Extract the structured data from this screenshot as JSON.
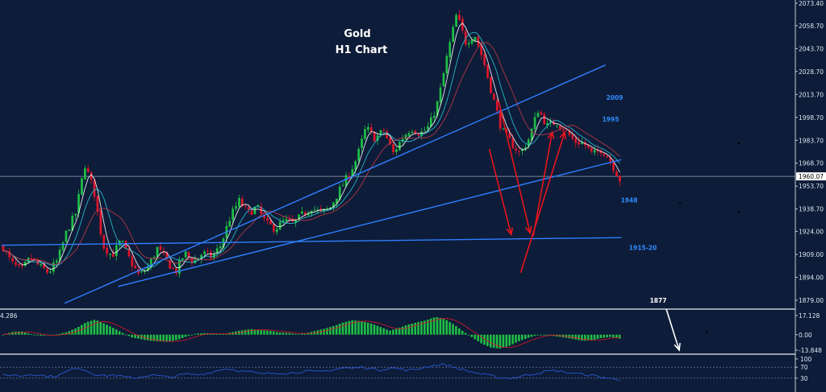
{
  "title": {
    "line1": "Gold",
    "line2": "H1 Chart"
  },
  "colors": {
    "background": "#0d1c38",
    "bull": "#1fbf45",
    "bear": "#e0152a",
    "trendline": "#2f7fff",
    "arrow_red": "#e8141c",
    "arrow_white": "#ffffff",
    "ma_white": "#ffffff",
    "ma_cyan": "#28c6d8",
    "ma_red": "#c43a48",
    "rsi_line": "#2a57d6",
    "price_box": "#ffffff"
  },
  "chart_data": [
    {
      "type": "candlestick",
      "title": "Gold H1 Chart",
      "instrument": "Gold",
      "timeframe": "H1",
      "ylim": [
        1872.5,
        2076.0
      ],
      "price_ticks": [
        "2073.40",
        "2058.70",
        "2043.70",
        "2028.70",
        "2013.70",
        "1998.70",
        "1983.70",
        "1968.70",
        "1953.70",
        "1938.70",
        "1924.00",
        "1909.00",
        "1894.00",
        "1879.00"
      ],
      "current_price": "1960.07",
      "key_prices": [
        {
          "name": "Current price line",
          "price": 1960.07
        }
      ],
      "ohlc_path": [
        [
          1914,
          1902
        ],
        [
          1903,
          1898
        ],
        [
          1898,
          1907
        ],
        [
          1907,
          1901
        ],
        [
          1901,
          1897
        ],
        [
          1897,
          1905
        ],
        [
          1905,
          1924
        ],
        [
          1924,
          1936
        ],
        [
          1936,
          1968
        ],
        [
          1968,
          1951
        ],
        [
          1951,
          1915
        ],
        [
          1915,
          1908
        ],
        [
          1908,
          1918
        ],
        [
          1918,
          1905
        ],
        [
          1905,
          1895
        ],
        [
          1895,
          1901
        ],
        [
          1901,
          1913
        ],
        [
          1913,
          1905
        ],
        [
          1905,
          1897
        ],
        [
          1897,
          1910
        ],
        [
          1910,
          1904
        ],
        [
          1904,
          1910
        ],
        [
          1910,
          1907
        ],
        [
          1907,
          1915
        ],
        [
          1915,
          1933
        ],
        [
          1933,
          1944
        ],
        [
          1944,
          1936
        ],
        [
          1936,
          1940
        ],
        [
          1940,
          1929
        ],
        [
          1929,
          1926
        ],
        [
          1926,
          1931
        ],
        [
          1931,
          1929
        ],
        [
          1929,
          1935
        ],
        [
          1935,
          1940
        ],
        [
          1940,
          1936
        ],
        [
          1936,
          1939
        ],
        [
          1939,
          1950
        ],
        [
          1950,
          1960
        ],
        [
          1960,
          1972
        ],
        [
          1972,
          1992
        ],
        [
          1992,
          1985
        ],
        [
          1985,
          1990
        ],
        [
          1990,
          1975
        ],
        [
          1975,
          1985
        ],
        [
          1985,
          1992
        ],
        [
          1992,
          1988
        ],
        [
          1988,
          1993
        ],
        [
          1993,
          2010
        ],
        [
          2010,
          2040
        ],
        [
          2040,
          2066
        ],
        [
          2066,
          2048
        ],
        [
          2048,
          2053
        ],
        [
          2053,
          2035
        ],
        [
          2035,
          2012
        ],
        [
          2012,
          1990
        ],
        [
          1990,
          1982
        ],
        [
          1982,
          1975
        ],
        [
          1975,
          1985
        ],
        [
          1985,
          2004
        ],
        [
          2004,
          1993
        ],
        [
          1993,
          1996
        ],
        [
          1996,
          1990
        ],
        [
          1990,
          1983
        ],
        [
          1983,
          1982
        ],
        [
          1982,
          1974
        ],
        [
          1974,
          1978
        ],
        [
          1978,
          1970
        ],
        [
          1970,
          1958
        ]
      ],
      "annotations": [
        {
          "text": "2009",
          "kind": "level"
        },
        {
          "text": "1995",
          "kind": "level"
        },
        {
          "text": "1948",
          "kind": "level"
        },
        {
          "text": "1915-20",
          "kind": "level"
        },
        {
          "text": "1877",
          "kind": "level"
        }
      ],
      "lines": [
        {
          "name": "Rising trendline (steep)",
          "from": {
            "bar": 20,
            "price": 1877
          },
          "to": {
            "bar": 192,
            "price": 2033
          }
        },
        {
          "name": "Rising trendline (shallow)",
          "from": {
            "bar": 37,
            "price": 1888
          },
          "to": {
            "bar": 197,
            "price": 1971
          }
        },
        {
          "name": "Horizontal support",
          "from": {
            "bar": 0,
            "price": 1915
          },
          "to": {
            "bar": 197,
            "price": 1920
          }
        }
      ],
      "arrows": [
        {
          "color": "red",
          "from": {
            "bar": 155,
            "price": 1978
          },
          "to": {
            "bar": 162,
            "price": 1922
          }
        },
        {
          "color": "red",
          "from": {
            "bar": 158,
            "price": 2009
          },
          "to": {
            "bar": 168,
            "price": 1923
          }
        },
        {
          "color": "red",
          "from": {
            "bar": 169,
            "price": 1921
          },
          "to": {
            "bar": 175,
            "price": 1989
          }
        },
        {
          "color": "red",
          "from": {
            "bar": 165,
            "price": 1897
          },
          "to": {
            "bar": 179,
            "price": 1989
          }
        }
      ]
    },
    {
      "type": "histogram",
      "name": "Oscillator",
      "ylim": [
        -13.848,
        17.128
      ],
      "tick_labels": [
        "17.128",
        "0.00",
        "-13.848"
      ],
      "left_label": "4.286",
      "note_label": "1877",
      "note_arrow": {
        "from_bar": 165,
        "to_bar": 168
      },
      "path": [
        0,
        2.5,
        3,
        0.5,
        -1,
        -0.5,
        0.5,
        2.5,
        6,
        11,
        13.5,
        10,
        6,
        1.5,
        -2.5,
        -4,
        -5.5,
        -6,
        -6.5,
        -4.5,
        -1.5,
        1,
        1.5,
        0.5,
        0.5,
        2.5,
        4,
        5,
        4,
        3.5,
        2,
        1.5,
        0.5,
        1.5,
        3.5,
        5.5,
        8,
        11,
        13,
        12,
        10,
        7,
        3.5,
        6,
        9,
        11,
        13,
        16,
        14,
        9,
        3,
        -2.5,
        -8,
        -11.5,
        -12.5,
        -10,
        -6,
        -3,
        -0.5,
        0,
        -1.5,
        -2.5,
        -4,
        -5.5,
        -5,
        -3,
        -2,
        -3.5
      ]
    },
    {
      "type": "line",
      "name": "RSI",
      "ylim": [
        0,
        100
      ],
      "tick_labels": [
        "100",
        "70",
        "30"
      ],
      "levels": [
        70,
        30
      ],
      "path": [
        40,
        42,
        38,
        45,
        41,
        36,
        40,
        55,
        70,
        58,
        44,
        38,
        42,
        36,
        30,
        35,
        42,
        38,
        33,
        40,
        45,
        42,
        47,
        55,
        65,
        62,
        55,
        52,
        45,
        48,
        50,
        47,
        52,
        56,
        52,
        56,
        62,
        68,
        66,
        70,
        65,
        60,
        68,
        64,
        58,
        63,
        72,
        78,
        80,
        70,
        60,
        52,
        45,
        38,
        32,
        30,
        35,
        42,
        48,
        55,
        58,
        52,
        48,
        44,
        40,
        34,
        28,
        25
      ]
    }
  ]
}
